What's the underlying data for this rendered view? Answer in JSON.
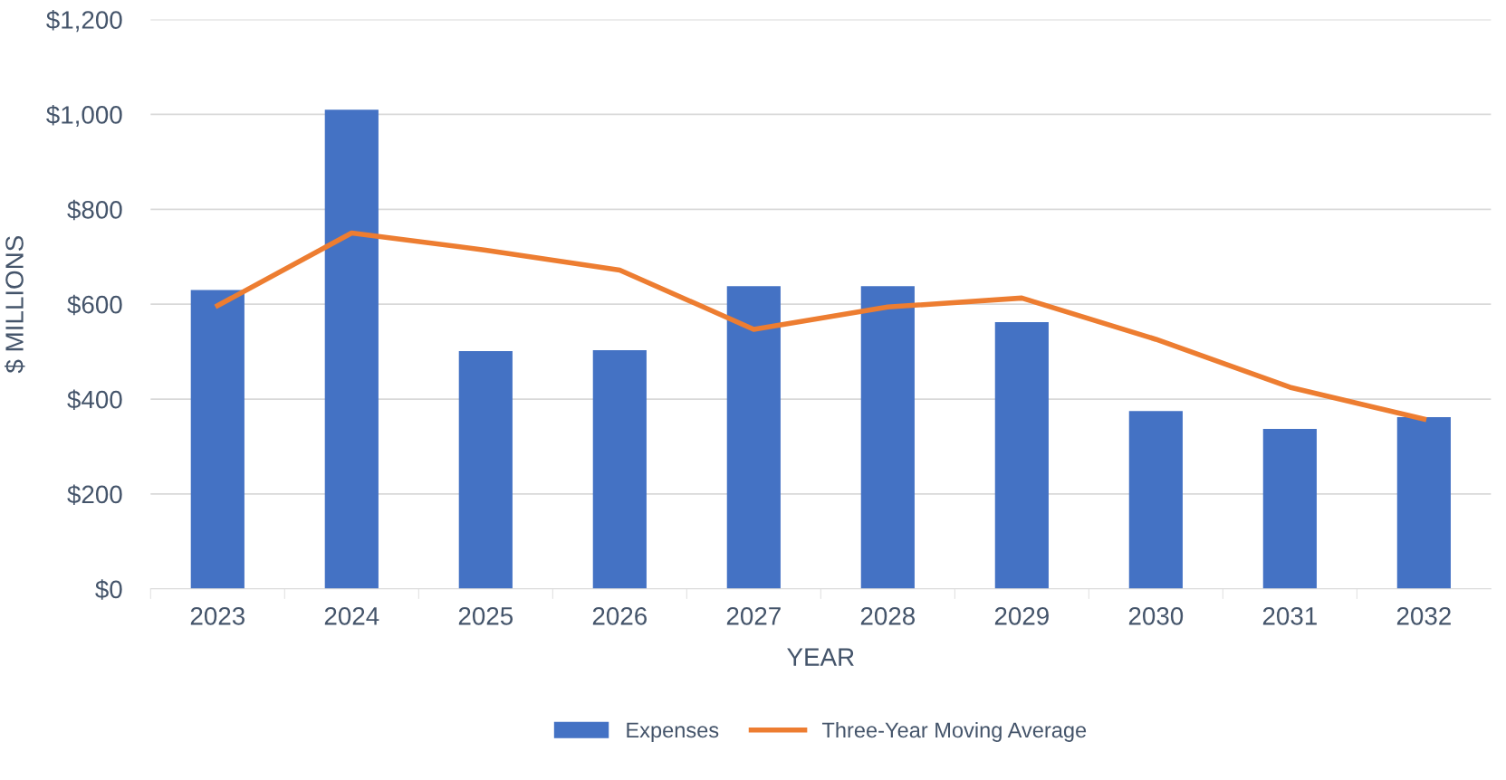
{
  "chart_data": {
    "type": "bar",
    "xlabel": "YEAR",
    "ylabel": "$ MILLIONS",
    "categories": [
      "2023",
      "2024",
      "2025",
      "2026",
      "2027",
      "2028",
      "2029",
      "2030",
      "2031",
      "2032"
    ],
    "series": [
      {
        "name": "Expenses",
        "color": "#4472c4",
        "values": [
          630,
          1010,
          501,
          503,
          638,
          638,
          562,
          375,
          337,
          362
        ]
      },
      {
        "name": "Three-Year Moving Average",
        "type": "line",
        "color": "#ed7d31",
        "values": [
          597,
          750,
          714,
          672,
          547,
          594,
          613,
          526,
          425,
          358
        ]
      }
    ],
    "ylim": [
      0,
      1200
    ],
    "yticks": [
      {
        "value": 0,
        "label": "$0"
      },
      {
        "value": 200,
        "label": "$200"
      },
      {
        "value": 400,
        "label": "$400"
      },
      {
        "value": 600,
        "label": "$600"
      },
      {
        "value": 800,
        "label": "$800"
      },
      {
        "value": 1000,
        "label": "$1,000"
      },
      {
        "value": 1200,
        "label": "$1,200"
      }
    ],
    "grid": "y",
    "legend": "bottom",
    "marker": "none",
    "line_style": "solid"
  }
}
